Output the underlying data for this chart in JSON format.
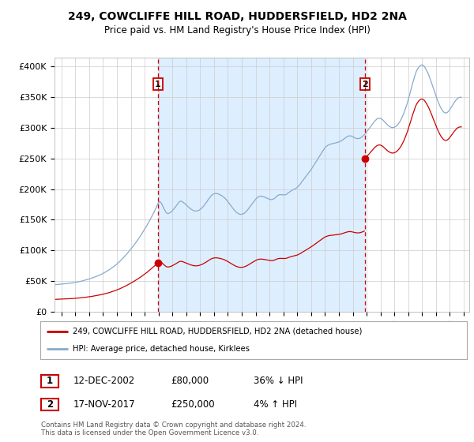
{
  "title": "249, COWCLIFFE HILL ROAD, HUDDERSFIELD, HD2 2NA",
  "subtitle": "Price paid vs. HM Land Registry's House Price Index (HPI)",
  "ylabel_ticks": [
    "£0",
    "£50K",
    "£100K",
    "£150K",
    "£200K",
    "£250K",
    "£300K",
    "£350K",
    "£400K"
  ],
  "ytick_values": [
    0,
    50000,
    100000,
    150000,
    200000,
    250000,
    300000,
    350000,
    400000
  ],
  "ylim": [
    0,
    415000
  ],
  "xlim_start": 1995.5,
  "xlim_end": 2025.4,
  "sale1": {
    "year": 2002.95,
    "price": 80000,
    "label": "1",
    "date": "12-DEC-2002",
    "pct": "36% ↓ HPI"
  },
  "sale2": {
    "year": 2017.88,
    "price": 250000,
    "label": "2",
    "date": "17-NOV-2017",
    "pct": "4% ↑ HPI"
  },
  "legend_line1": "249, COWCLIFFE HILL ROAD, HUDDERSFIELD, HD2 2NA (detached house)",
  "legend_line2": "HPI: Average price, detached house, Kirklees",
  "footer": "Contains HM Land Registry data © Crown copyright and database right 2024.\nThis data is licensed under the Open Government Licence v3.0.",
  "sale_color": "#cc0000",
  "hpi_color": "#88aacc",
  "shade_color": "#ddeeff",
  "vline_color": "#cc0000",
  "background_color": "#ffffff",
  "grid_color": "#cccccc",
  "hpi_data_x": [
    1995.58,
    1995.67,
    1995.75,
    1995.83,
    1995.92,
    1996.0,
    1996.08,
    1996.17,
    1996.25,
    1996.33,
    1996.42,
    1996.5,
    1996.58,
    1996.67,
    1996.75,
    1996.83,
    1996.92,
    1997.0,
    1997.08,
    1997.17,
    1997.25,
    1997.33,
    1997.42,
    1997.5,
    1997.58,
    1997.67,
    1997.75,
    1997.83,
    1997.92,
    1998.0,
    1998.08,
    1998.17,
    1998.25,
    1998.33,
    1998.42,
    1998.5,
    1998.58,
    1998.67,
    1998.75,
    1998.83,
    1998.92,
    1999.0,
    1999.08,
    1999.17,
    1999.25,
    1999.33,
    1999.42,
    1999.5,
    1999.58,
    1999.67,
    1999.75,
    1999.83,
    1999.92,
    2000.0,
    2000.08,
    2000.17,
    2000.25,
    2000.33,
    2000.42,
    2000.5,
    2000.58,
    2000.67,
    2000.75,
    2000.83,
    2000.92,
    2001.0,
    2001.08,
    2001.17,
    2001.25,
    2001.33,
    2001.42,
    2001.5,
    2001.58,
    2001.67,
    2001.75,
    2001.83,
    2001.92,
    2002.0,
    2002.08,
    2002.17,
    2002.25,
    2002.33,
    2002.42,
    2002.5,
    2002.58,
    2002.67,
    2002.75,
    2002.83,
    2002.92,
    2003.0,
    2003.08,
    2003.17,
    2003.25,
    2003.33,
    2003.42,
    2003.5,
    2003.58,
    2003.67,
    2003.75,
    2003.83,
    2003.92,
    2004.0,
    2004.08,
    2004.17,
    2004.25,
    2004.33,
    2004.42,
    2004.5,
    2004.58,
    2004.67,
    2004.75,
    2004.83,
    2004.92,
    2005.0,
    2005.08,
    2005.17,
    2005.25,
    2005.33,
    2005.42,
    2005.5,
    2005.58,
    2005.67,
    2005.75,
    2005.83,
    2005.92,
    2006.0,
    2006.08,
    2006.17,
    2006.25,
    2006.33,
    2006.42,
    2006.5,
    2006.58,
    2006.67,
    2006.75,
    2006.83,
    2006.92,
    2007.0,
    2007.08,
    2007.17,
    2007.25,
    2007.33,
    2007.42,
    2007.5,
    2007.58,
    2007.67,
    2007.75,
    2007.83,
    2007.92,
    2008.0,
    2008.08,
    2008.17,
    2008.25,
    2008.33,
    2008.42,
    2008.5,
    2008.58,
    2008.67,
    2008.75,
    2008.83,
    2008.92,
    2009.0,
    2009.08,
    2009.17,
    2009.25,
    2009.33,
    2009.42,
    2009.5,
    2009.58,
    2009.67,
    2009.75,
    2009.83,
    2009.92,
    2010.0,
    2010.08,
    2010.17,
    2010.25,
    2010.33,
    2010.42,
    2010.5,
    2010.58,
    2010.67,
    2010.75,
    2010.83,
    2010.92,
    2011.0,
    2011.08,
    2011.17,
    2011.25,
    2011.33,
    2011.42,
    2011.5,
    2011.58,
    2011.67,
    2011.75,
    2011.83,
    2011.92,
    2012.0,
    2012.08,
    2012.17,
    2012.25,
    2012.33,
    2012.42,
    2012.5,
    2012.58,
    2012.67,
    2012.75,
    2012.83,
    2012.92,
    2013.0,
    2013.08,
    2013.17,
    2013.25,
    2013.33,
    2013.42,
    2013.5,
    2013.58,
    2013.67,
    2013.75,
    2013.83,
    2013.92,
    2014.0,
    2014.08,
    2014.17,
    2014.25,
    2014.33,
    2014.42,
    2014.5,
    2014.58,
    2014.67,
    2014.75,
    2014.83,
    2014.92,
    2015.0,
    2015.08,
    2015.17,
    2015.25,
    2015.33,
    2015.42,
    2015.5,
    2015.58,
    2015.67,
    2015.75,
    2015.83,
    2015.92,
    2016.0,
    2016.08,
    2016.17,
    2016.25,
    2016.33,
    2016.42,
    2016.5,
    2016.58,
    2016.67,
    2016.75,
    2016.83,
    2016.92,
    2017.0,
    2017.08,
    2017.17,
    2017.25,
    2017.33,
    2017.42,
    2017.5,
    2017.58,
    2017.67,
    2017.75,
    2017.83,
    2017.92,
    2018.0,
    2018.08,
    2018.17,
    2018.25,
    2018.33,
    2018.42,
    2018.5,
    2018.58,
    2018.67,
    2018.75,
    2018.83,
    2018.92,
    2019.0,
    2019.08,
    2019.17,
    2019.25,
    2019.33,
    2019.42,
    2019.5,
    2019.58,
    2019.67,
    2019.75,
    2019.83,
    2019.92,
    2020.0,
    2020.08,
    2020.17,
    2020.25,
    2020.33,
    2020.42,
    2020.5,
    2020.58,
    2020.67,
    2020.75,
    2020.83,
    2020.92,
    2021.0,
    2021.08,
    2021.17,
    2021.25,
    2021.33,
    2021.42,
    2021.5,
    2021.58,
    2021.67,
    2021.75,
    2021.83,
    2021.92,
    2022.0,
    2022.08,
    2022.17,
    2022.25,
    2022.33,
    2022.42,
    2022.5,
    2022.58,
    2022.67,
    2022.75,
    2022.83,
    2022.92,
    2023.0,
    2023.08,
    2023.17,
    2023.25,
    2023.33,
    2023.42,
    2023.5,
    2023.58,
    2023.67,
    2023.75,
    2023.83,
    2023.92,
    2024.0,
    2024.08,
    2024.17,
    2024.25,
    2024.33,
    2024.42,
    2024.5,
    2024.58,
    2024.67,
    2024.75,
    2024.83
  ],
  "hpi_data_y": [
    44000,
    44200,
    44400,
    44500,
    44700,
    44900,
    45000,
    45200,
    45400,
    45600,
    45800,
    46000,
    46200,
    46500,
    46800,
    47000,
    47300,
    47600,
    48000,
    48400,
    48800,
    49200,
    49600,
    50100,
    50600,
    51100,
    51600,
    52100,
    52700,
    53300,
    53900,
    54500,
    55200,
    55900,
    56600,
    57300,
    58100,
    58900,
    59700,
    60500,
    61400,
    62400,
    63400,
    64500,
    65600,
    66700,
    67900,
    69200,
    70500,
    71800,
    73200,
    74700,
    76200,
    77800,
    79500,
    81200,
    83000,
    84900,
    86800,
    88800,
    90900,
    93000,
    95200,
    97400,
    99700,
    102000,
    104400,
    106800,
    109300,
    111800,
    114400,
    117100,
    119900,
    122700,
    125600,
    128500,
    131500,
    134600,
    137800,
    141000,
    144300,
    147700,
    151200,
    154800,
    158500,
    162200,
    166100,
    170100,
    174200,
    178400,
    180000,
    178000,
    175000,
    171000,
    167000,
    163500,
    161000,
    160000,
    160500,
    161500,
    163000,
    165000,
    167000,
    169500,
    172000,
    174500,
    177000,
    179500,
    180500,
    180000,
    179000,
    177500,
    175800,
    174000,
    172300,
    170500,
    169000,
    167500,
    166200,
    165200,
    164500,
    164200,
    164300,
    164800,
    165600,
    166800,
    168300,
    170200,
    172300,
    174700,
    177300,
    180000,
    183000,
    185500,
    188000,
    190000,
    191500,
    192500,
    193000,
    193000,
    192500,
    192000,
    191000,
    190000,
    189000,
    187500,
    186000,
    184000,
    182000,
    179500,
    177000,
    174500,
    172000,
    169500,
    167000,
    164800,
    162800,
    161200,
    160000,
    159200,
    158800,
    159000,
    159500,
    160500,
    162000,
    163800,
    166000,
    168500,
    171000,
    173500,
    176000,
    178500,
    181000,
    183500,
    185500,
    187000,
    188000,
    188500,
    188500,
    188000,
    187500,
    186800,
    186000,
    185000,
    184200,
    183500,
    183000,
    183000,
    183500,
    184500,
    186000,
    188000,
    189500,
    190500,
    191000,
    191000,
    190800,
    190500,
    190500,
    191000,
    192000,
    193500,
    195000,
    196500,
    197500,
    198500,
    199500,
    200500,
    201500,
    203000,
    204800,
    207000,
    209500,
    212000,
    214500,
    217000,
    219500,
    222000,
    224500,
    227000,
    229500,
    232000,
    235000,
    238000,
    241000,
    244000,
    247000,
    250000,
    253000,
    256000,
    259000,
    262000,
    265000,
    267500,
    269500,
    271000,
    272000,
    273000,
    273500,
    274000,
    274500,
    275000,
    275500,
    276000,
    276500,
    277000,
    277800,
    278800,
    280000,
    281500,
    283000,
    284500,
    285500,
    286500,
    287000,
    287000,
    286500,
    285500,
    284500,
    283500,
    282800,
    282500,
    282500,
    283000,
    284000,
    285500,
    287000,
    289000,
    291000,
    293500,
    296000,
    298500,
    301000,
    303500,
    306000,
    308500,
    311000,
    313000,
    314500,
    315500,
    315800,
    315500,
    314500,
    313000,
    311000,
    309000,
    307000,
    305000,
    303500,
    302000,
    301000,
    300500,
    300500,
    301000,
    302000,
    303500,
    305500,
    308000,
    311000,
    314500,
    318500,
    323000,
    328000,
    333500,
    339500,
    346000,
    353000,
    360000,
    367000,
    374000,
    380500,
    387000,
    392000,
    396000,
    399000,
    401000,
    402500,
    403000,
    402000,
    400000,
    397000,
    393500,
    389500,
    385000,
    380000,
    374500,
    369000,
    363500,
    358000,
    352500,
    347000,
    342000,
    337500,
    333500,
    330000,
    327500,
    325500,
    324500,
    324500,
    325500,
    327500,
    330000,
    333000,
    336000,
    339000,
    342000,
    344500,
    347000,
    348500,
    349500,
    350000,
    350000
  ]
}
